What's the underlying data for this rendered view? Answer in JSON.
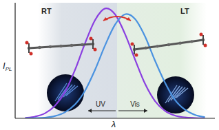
{
  "chart_data": {
    "type": "line",
    "x_label": "λ",
    "y_label": "I",
    "y_label_sub": "PL",
    "x": [
      5,
      10,
      15,
      20,
      25,
      30,
      35,
      40,
      45,
      50,
      55,
      60,
      65,
      70,
      75,
      80,
      85,
      90,
      95
    ],
    "series": [
      {
        "name": "RT",
        "color": "#8a3fe0",
        "values": [
          0.4,
          1.5,
          4.4,
          11,
          23,
          42,
          65,
          85,
          95,
          90,
          73,
          51,
          30,
          15,
          6.5,
          2.4,
          0.8,
          0.3,
          0.1
        ]
      },
      {
        "name": "LT",
        "color": "#4a92e0",
        "values": [
          0.0,
          0.2,
          0.6,
          2,
          5.3,
          12,
          24,
          42,
          63,
          81,
          90,
          86,
          71,
          50,
          31,
          16,
          7.5,
          3,
          1
        ]
      }
    ],
    "annotations": [
      "RT",
      "LT",
      "UV",
      "Vis"
    ],
    "xlim": [
      0,
      100
    ],
    "ylim": [
      0,
      100
    ],
    "xticks": [],
    "yticks": [],
    "tick_labels": false,
    "grid": false
  }
}
